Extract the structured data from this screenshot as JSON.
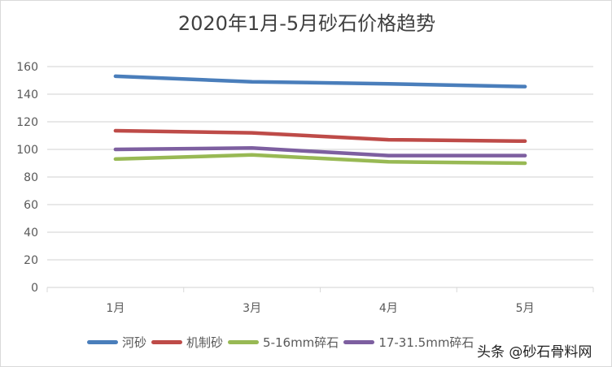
{
  "chart_data": {
    "type": "line",
    "title": "2020年1月-5月砂石价格趋势",
    "categories": [
      "1月",
      "3月",
      "4月",
      "5月"
    ],
    "ylim": [
      0,
      160
    ],
    "yticks": [
      0,
      20,
      40,
      60,
      80,
      100,
      120,
      140,
      160
    ],
    "grid": true,
    "legend_position": "bottom",
    "series": [
      {
        "name": "河砂",
        "color": "#4a7ebb",
        "values": [
          153,
          149,
          147.5,
          145.5
        ]
      },
      {
        "name": "机制砂",
        "color": "#be4b48",
        "values": [
          113.5,
          112,
          107,
          106
        ]
      },
      {
        "name": "5-16mm碎石",
        "color": "#98b954",
        "values": [
          93,
          96,
          91,
          90
        ]
      },
      {
        "name": "17-31.5mm碎石",
        "color": "#7d5fa0",
        "values": [
          100,
          101,
          95.5,
          95.5
        ]
      }
    ]
  },
  "watermark": "头条 @砂石骨料网"
}
